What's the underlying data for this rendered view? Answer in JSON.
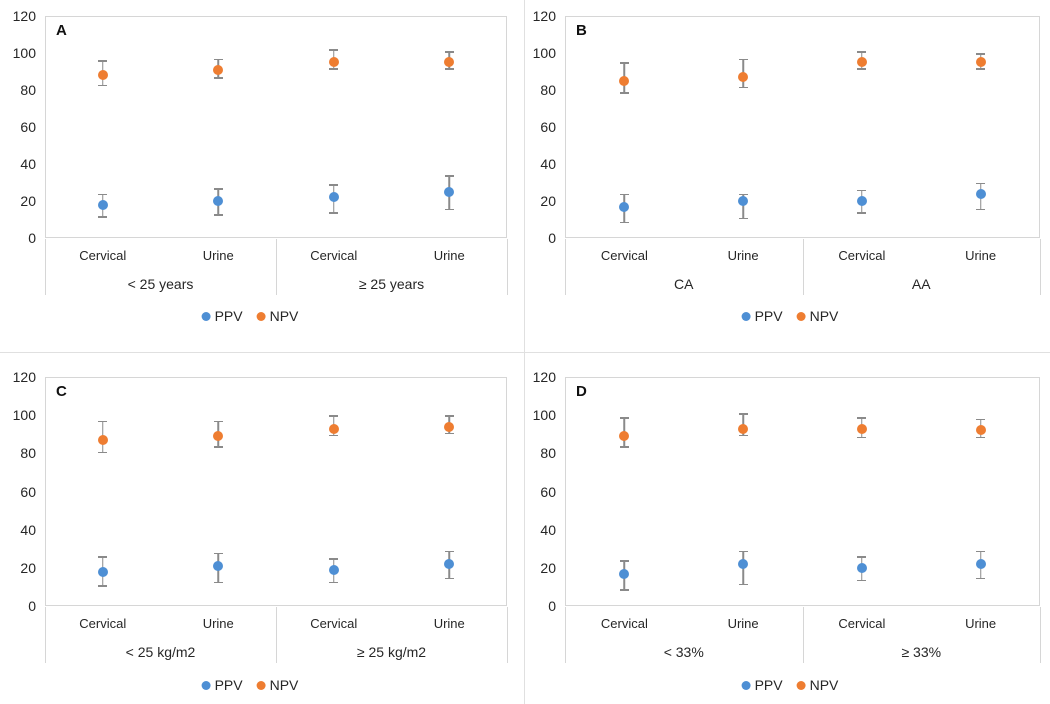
{
  "colors": {
    "ppv": "#4E8FD4",
    "npv": "#EE7D31",
    "error_bar": "#8A8A8A",
    "plot_border": "#D6D6D6",
    "divider": "#E0E0E0",
    "text": "#262626"
  },
  "legend": {
    "items": [
      {
        "label": "PPV",
        "color_key": "ppv",
        "icon": "legend-dot-ppv-icon"
      },
      {
        "label": "NPV",
        "color_key": "npv",
        "icon": "legend-dot-npv-icon"
      }
    ]
  },
  "chart_data": [
    {
      "type": "scatter",
      "panel": "A",
      "title": "",
      "categories": [
        "Cervical",
        "Urine",
        "Cervical",
        "Urine"
      ],
      "group_labels": [
        "< 25 years",
        "≥ 25 years"
      ],
      "ylim": [
        0,
        120
      ],
      "yticks": [
        0,
        20,
        40,
        60,
        80,
        100,
        120
      ],
      "grid": false,
      "legend_position": "bottom",
      "series": [
        {
          "name": "PPV",
          "color_key": "ppv",
          "values": [
            18,
            20,
            22,
            25
          ],
          "ci_low": [
            11,
            12,
            13,
            15
          ],
          "ci_high": [
            24,
            27,
            29,
            34
          ]
        },
        {
          "name": "NPV",
          "color_key": "npv",
          "values": [
            88,
            91,
            95,
            95
          ],
          "ci_low": [
            82,
            86,
            91,
            91
          ],
          "ci_high": [
            96,
            97,
            102,
            101
          ]
        }
      ]
    },
    {
      "type": "scatter",
      "panel": "B",
      "title": "",
      "categories": [
        "Cervical",
        "Urine",
        "Cervical",
        "Urine"
      ],
      "group_labels": [
        "CA",
        "AA"
      ],
      "ylim": [
        0,
        120
      ],
      "yticks": [
        0,
        20,
        40,
        60,
        80,
        100,
        120
      ],
      "grid": false,
      "legend_position": "bottom",
      "series": [
        {
          "name": "PPV",
          "color_key": "ppv",
          "values": [
            17,
            20,
            20,
            24
          ],
          "ci_low": [
            8,
            10,
            13,
            15
          ],
          "ci_high": [
            24,
            24,
            26,
            30
          ]
        },
        {
          "name": "NPV",
          "color_key": "npv",
          "values": [
            85,
            87,
            95,
            95
          ],
          "ci_low": [
            78,
            81,
            91,
            91
          ],
          "ci_high": [
            95,
            97,
            101,
            100
          ]
        }
      ]
    },
    {
      "type": "scatter",
      "panel": "C",
      "title": "",
      "categories": [
        "Cervical",
        "Urine",
        "Cervical",
        "Urine"
      ],
      "group_labels": [
        "< 25 kg/m2",
        "≥ 25 kg/m2"
      ],
      "ylim": [
        0,
        120
      ],
      "yticks": [
        0,
        20,
        40,
        60,
        80,
        100,
        120
      ],
      "grid": false,
      "legend_position": "bottom",
      "series": [
        {
          "name": "PPV",
          "color_key": "ppv",
          "values": [
            18,
            21,
            19,
            22
          ],
          "ci_low": [
            10,
            12,
            12,
            14
          ],
          "ci_high": [
            26,
            28,
            25,
            29
          ]
        },
        {
          "name": "NPV",
          "color_key": "npv",
          "values": [
            87,
            89,
            93,
            94
          ],
          "ci_low": [
            80,
            83,
            89,
            90
          ],
          "ci_high": [
            97,
            97,
            100,
            100
          ]
        }
      ]
    },
    {
      "type": "scatter",
      "panel": "D",
      "title": "",
      "categories": [
        "Cervical",
        "Urine",
        "Cervical",
        "Urine"
      ],
      "group_labels": [
        "< 33%",
        "≥ 33%"
      ],
      "ylim": [
        0,
        120
      ],
      "yticks": [
        0,
        20,
        40,
        60,
        80,
        100,
        120
      ],
      "grid": false,
      "legend_position": "bottom",
      "series": [
        {
          "name": "PPV",
          "color_key": "ppv",
          "values": [
            17,
            22,
            20,
            22
          ],
          "ci_low": [
            8,
            11,
            13,
            14
          ],
          "ci_high": [
            24,
            29,
            26,
            29
          ]
        },
        {
          "name": "NPV",
          "color_key": "npv",
          "values": [
            89,
            93,
            93,
            92
          ],
          "ci_low": [
            83,
            89,
            88,
            88
          ],
          "ci_high": [
            99,
            101,
            99,
            98
          ]
        }
      ]
    }
  ]
}
